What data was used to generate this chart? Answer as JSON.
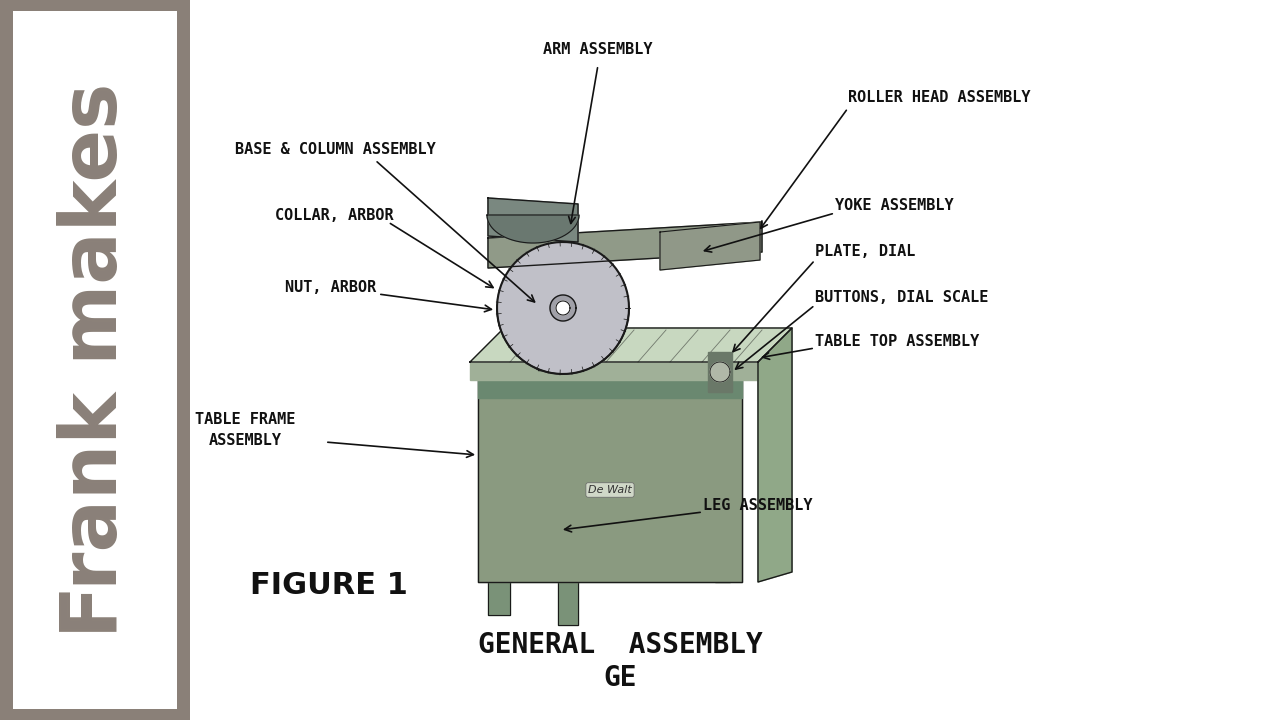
{
  "background_color": "#ffffff",
  "sidebar_bg": "#8a8078",
  "sidebar_text": "Frank makes",
  "figure_label": "FIGURE 1",
  "bottom_title1": "GENERAL  ASSEMBLY",
  "bottom_title2": "GE",
  "label_fontsize": 11,
  "label_font_color": "#111111"
}
